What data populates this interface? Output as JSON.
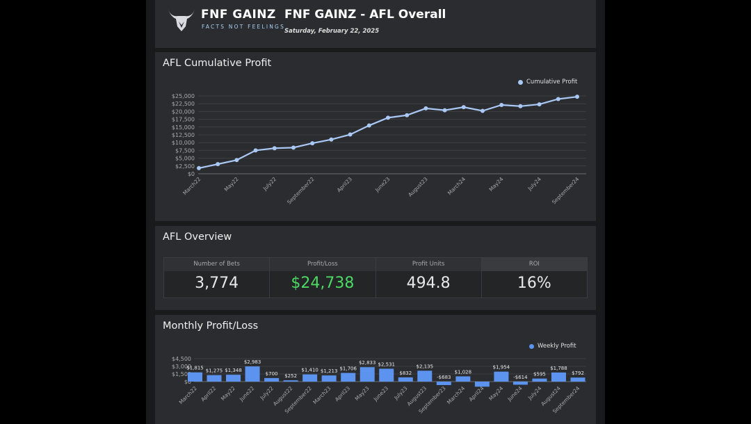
{
  "header": {
    "brand_name": "FNF GAINZ",
    "brand_tagline": "FACTS NOT FEELINGS",
    "title": "FNF GAINZ - AFL Overall",
    "date": "Saturday, February 22, 2025"
  },
  "cumulative": {
    "title": "AFL Cumulative Profit",
    "legend": "Cumulative Profit"
  },
  "overview": {
    "title": "AFL Overview",
    "headers": [
      "Number of Bets",
      "Profit/Loss",
      "Profit Units",
      "ROI"
    ],
    "values": [
      "3,774",
      "$24,738",
      "494.8",
      "16%"
    ],
    "profit_color": "#4cd964"
  },
  "monthly": {
    "title": "Monthly Profit/Loss",
    "legend": "Weekly Profit"
  },
  "colors": {
    "line": "#a9c8f5",
    "bar": "#5b93ef"
  },
  "chart_data": [
    {
      "type": "line",
      "title": "AFL Cumulative Profit",
      "series": [
        {
          "name": "Cumulative Profit",
          "values": [
            1800,
            3100,
            4400,
            7500,
            8200,
            8400,
            9800,
            11000,
            12600,
            15500,
            18000,
            18800,
            21000,
            20400,
            21400,
            20200,
            22100,
            21700,
            22300,
            24000,
            24738
          ]
        }
      ],
      "x_tick_labels": [
        "March22",
        "May22",
        "July22",
        "September22",
        "April23",
        "June23",
        "August23",
        "March24",
        "May24",
        "July24",
        "September24"
      ],
      "y_tick_labels": [
        "$0",
        "$2,500",
        "$5,000",
        "$7,500",
        "$10,000",
        "$12,500",
        "$15,000",
        "$17,500",
        "$20,000",
        "$22,500",
        "$25,000"
      ],
      "ylim": [
        0,
        25000
      ],
      "legend": "top-right",
      "grid": true
    },
    {
      "type": "bar",
      "title": "Monthly Profit/Loss",
      "categories": [
        "March22",
        "April22",
        "May22",
        "June22",
        "July22",
        "August22",
        "September22",
        "March23",
        "April23",
        "May23",
        "June23",
        "July23",
        "August23",
        "September23",
        "March24",
        "April24",
        "May24",
        "June24",
        "July24",
        "August24",
        "September24"
      ],
      "series": [
        {
          "name": "Weekly Profit",
          "values": [
            1815,
            1275,
            1348,
            2983,
            700,
            252,
            1410,
            1213,
            1706,
            2833,
            2531,
            832,
            2135,
            -683,
            1028,
            -1000,
            1954,
            -614,
            595,
            1788,
            792
          ]
        }
      ],
      "value_labels": [
        "$1,815",
        "$1,275",
        "$1,348",
        "$2,983",
        "$700",
        "$252",
        "$1,410",
        "$1,213",
        "$1,706",
        "$2,833",
        "$2,531",
        "$832",
        "$2,135",
        "-$683",
        "$1,028",
        "",
        "$1,954",
        "-$614",
        "$595",
        "$1,788",
        "$792"
      ],
      "y_tick_labels": [
        "$0",
        "$1,500",
        "$3,000",
        "$4,500"
      ],
      "ylim": [
        -1200,
        4500
      ],
      "legend": "top-right",
      "grid": true
    }
  ]
}
